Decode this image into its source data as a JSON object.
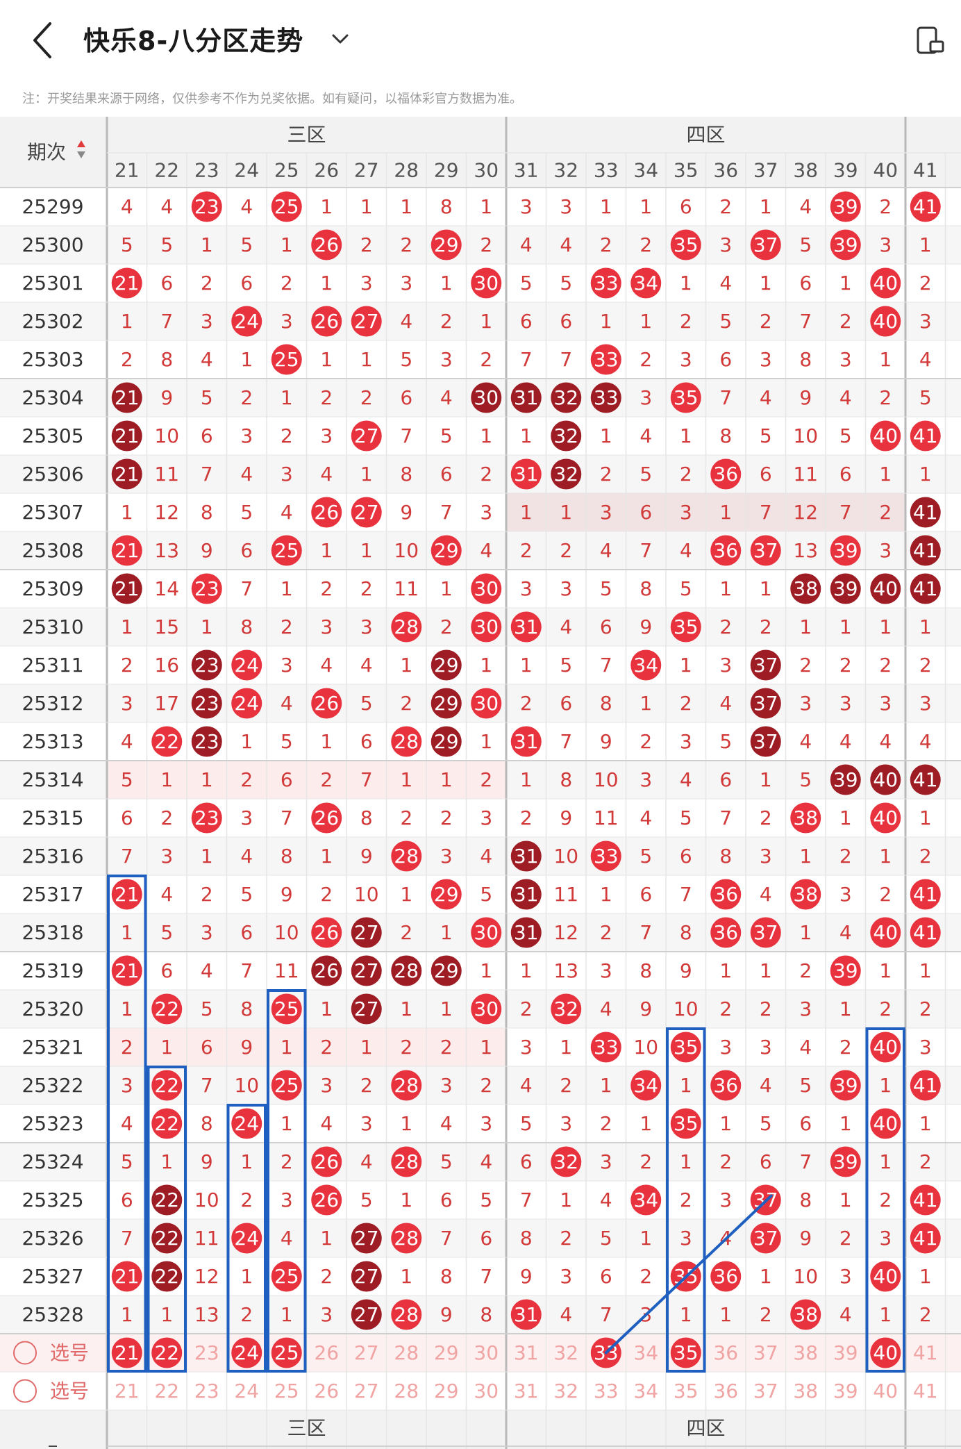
{
  "header": {
    "title": "快乐8-八分区走势",
    "back_icon": "chevron-left-icon",
    "dropdown_icon": "chevron-down-icon",
    "right_icon": "device-settings-icon"
  },
  "note": "注：开奖结果来源于网络，仅供参考不作为兑奖依据。如有疑问，以福体彩官方数据为准。",
  "table": {
    "period_header": "期次",
    "sort_icon": "sort-updown-icon",
    "zones": [
      "三区",
      "四区"
    ],
    "numbers": [
      "21",
      "22",
      "23",
      "24",
      "25",
      "26",
      "27",
      "28",
      "29",
      "30",
      "31",
      "32",
      "33",
      "34",
      "35",
      "36",
      "37",
      "38",
      "39",
      "40",
      "41"
    ],
    "rows": [
      {
        "period": "25299",
        "cells": [
          "4",
          "4",
          "H",
          "4",
          "H",
          "1",
          "1",
          "1",
          "8",
          "1",
          "3",
          "3",
          "1",
          "1",
          "6",
          "2",
          "1",
          "4",
          "H",
          "2",
          "H"
        ]
      },
      {
        "period": "25300",
        "cells": [
          "5",
          "5",
          "1",
          "5",
          "1",
          "H",
          "2",
          "2",
          "H",
          "2",
          "4",
          "4",
          "2",
          "2",
          "H",
          "3",
          "H",
          "5",
          "H",
          "3",
          "1"
        ]
      },
      {
        "period": "25301",
        "cells": [
          "H",
          "6",
          "2",
          "6",
          "2",
          "1",
          "3",
          "3",
          "1",
          "H",
          "5",
          "5",
          "H",
          "H",
          "1",
          "4",
          "1",
          "6",
          "1",
          "H",
          "2"
        ]
      },
      {
        "period": "25302",
        "cells": [
          "1",
          "7",
          "3",
          "H",
          "3",
          "H",
          "H",
          "4",
          "2",
          "1",
          "6",
          "6",
          "1",
          "1",
          "2",
          "5",
          "2",
          "7",
          "2",
          "H",
          "3"
        ]
      },
      {
        "period": "25303",
        "cells": [
          "2",
          "8",
          "4",
          "1",
          "H",
          "1",
          "1",
          "5",
          "3",
          "2",
          "7",
          "7",
          "H",
          "2",
          "3",
          "6",
          "3",
          "8",
          "3",
          "1",
          "4"
        ]
      },
      {
        "period": "25304",
        "cells": [
          "C",
          "9",
          "5",
          "2",
          "1",
          "2",
          "2",
          "6",
          "4",
          "C",
          "C",
          "C",
          "C",
          "3",
          "H",
          "7",
          "4",
          "9",
          "4",
          "2",
          "5"
        ]
      },
      {
        "period": "25305",
        "cells": [
          "C",
          "10",
          "6",
          "3",
          "2",
          "3",
          "H",
          "7",
          "5",
          "1",
          "1",
          "C",
          "1",
          "4",
          "1",
          "8",
          "5",
          "10",
          "5",
          "H",
          "H"
        ]
      },
      {
        "period": "25306",
        "cells": [
          "C",
          "11",
          "7",
          "4",
          "3",
          "4",
          "1",
          "8",
          "6",
          "2",
          "H",
          "C",
          "2",
          "5",
          "2",
          "H",
          "6",
          "11",
          "6",
          "1",
          "1"
        ]
      },
      {
        "period": "25307",
        "cells": [
          "1",
          "12",
          "8",
          "5",
          "4",
          "H",
          "H",
          "9",
          "7",
          "3",
          "1",
          "1",
          "3",
          "6",
          "3",
          "1",
          "7",
          "12",
          "7",
          "2",
          "C"
        ]
      },
      {
        "period": "25308",
        "cells": [
          "H",
          "13",
          "9",
          "6",
          "H",
          "1",
          "1",
          "10",
          "H",
          "4",
          "2",
          "2",
          "4",
          "7",
          "4",
          "H",
          "H",
          "13",
          "H",
          "3",
          "C"
        ]
      },
      {
        "period": "25309",
        "cells": [
          "C",
          "14",
          "H",
          "7",
          "1",
          "2",
          "2",
          "11",
          "1",
          "H",
          "3",
          "3",
          "5",
          "8",
          "5",
          "1",
          "1",
          "C",
          "C",
          "C",
          "C"
        ]
      },
      {
        "period": "25310",
        "cells": [
          "1",
          "15",
          "1",
          "8",
          "2",
          "3",
          "3",
          "H",
          "2",
          "H",
          "H",
          "4",
          "6",
          "9",
          "H",
          "2",
          "2",
          "1",
          "1",
          "1",
          "1"
        ]
      },
      {
        "period": "25311",
        "cells": [
          "2",
          "16",
          "C",
          "H",
          "3",
          "4",
          "4",
          "1",
          "C",
          "1",
          "1",
          "5",
          "7",
          "H",
          "1",
          "3",
          "C",
          "2",
          "2",
          "2",
          "2"
        ]
      },
      {
        "period": "25312",
        "cells": [
          "3",
          "17",
          "C",
          "H",
          "4",
          "H",
          "5",
          "2",
          "C",
          "H",
          "2",
          "6",
          "8",
          "1",
          "2",
          "4",
          "C",
          "3",
          "3",
          "3",
          "3"
        ]
      },
      {
        "period": "25313",
        "cells": [
          "4",
          "H",
          "C",
          "1",
          "5",
          "1",
          "6",
          "H",
          "C",
          "1",
          "H",
          "7",
          "9",
          "2",
          "3",
          "5",
          "C",
          "4",
          "4",
          "4",
          "4"
        ]
      },
      {
        "period": "25314",
        "cells": [
          "5",
          "1",
          "1",
          "2",
          "6",
          "2",
          "7",
          "1",
          "1",
          "2",
          "1",
          "8",
          "10",
          "3",
          "4",
          "6",
          "1",
          "5",
          "C",
          "C",
          "C"
        ]
      },
      {
        "period": "25315",
        "cells": [
          "6",
          "2",
          "H",
          "3",
          "7",
          "H",
          "8",
          "2",
          "2",
          "3",
          "2",
          "9",
          "11",
          "4",
          "5",
          "7",
          "2",
          "H",
          "1",
          "H",
          "1"
        ]
      },
      {
        "period": "25316",
        "cells": [
          "7",
          "3",
          "1",
          "4",
          "8",
          "1",
          "9",
          "H",
          "3",
          "4",
          "C",
          "10",
          "H",
          "5",
          "6",
          "8",
          "3",
          "1",
          "2",
          "1",
          "2"
        ]
      },
      {
        "period": "25317",
        "cells": [
          "H",
          "4",
          "2",
          "5",
          "9",
          "2",
          "10",
          "1",
          "H",
          "5",
          "C",
          "11",
          "1",
          "6",
          "7",
          "H",
          "4",
          "H",
          "3",
          "2",
          "H"
        ]
      },
      {
        "period": "25318",
        "cells": [
          "1",
          "5",
          "3",
          "6",
          "10",
          "H",
          "C",
          "2",
          "1",
          "H",
          "C",
          "12",
          "2",
          "7",
          "8",
          "H",
          "H",
          "1",
          "4",
          "H",
          "H"
        ]
      },
      {
        "period": "25319",
        "cells": [
          "H",
          "6",
          "4",
          "7",
          "11",
          "C",
          "C",
          "C",
          "C",
          "1",
          "1",
          "13",
          "3",
          "8",
          "9",
          "1",
          "1",
          "2",
          "H",
          "1",
          "1"
        ]
      },
      {
        "period": "25320",
        "cells": [
          "1",
          "H",
          "5",
          "8",
          "H",
          "1",
          "C",
          "1",
          "1",
          "H",
          "2",
          "H",
          "4",
          "9",
          "10",
          "2",
          "2",
          "3",
          "1",
          "2",
          "2"
        ]
      },
      {
        "period": "25321",
        "cells": [
          "2",
          "1",
          "6",
          "9",
          "1",
          "2",
          "1",
          "2",
          "2",
          "1",
          "3",
          "1",
          "H",
          "10",
          "H",
          "3",
          "3",
          "4",
          "2",
          "H",
          "3"
        ]
      },
      {
        "period": "25322",
        "cells": [
          "3",
          "H",
          "7",
          "10",
          "H",
          "3",
          "2",
          "H",
          "3",
          "2",
          "4",
          "2",
          "1",
          "H",
          "1",
          "H",
          "4",
          "5",
          "H",
          "1",
          "H"
        ]
      },
      {
        "period": "25323",
        "cells": [
          "4",
          "H",
          "8",
          "H",
          "1",
          "4",
          "3",
          "1",
          "4",
          "3",
          "5",
          "3",
          "2",
          "1",
          "H",
          "1",
          "5",
          "6",
          "1",
          "H",
          "1"
        ]
      },
      {
        "period": "25324",
        "cells": [
          "5",
          "1",
          "9",
          "1",
          "2",
          "H",
          "4",
          "H",
          "5",
          "4",
          "6",
          "H",
          "3",
          "2",
          "1",
          "2",
          "6",
          "7",
          "H",
          "1",
          "2"
        ]
      },
      {
        "period": "25325",
        "cells": [
          "6",
          "C",
          "10",
          "2",
          "3",
          "H",
          "5",
          "1",
          "6",
          "5",
          "7",
          "1",
          "4",
          "H",
          "2",
          "3",
          "H",
          "8",
          "1",
          "2",
          "H"
        ]
      },
      {
        "period": "25326",
        "cells": [
          "7",
          "C",
          "11",
          "H",
          "4",
          "1",
          "C",
          "H",
          "7",
          "6",
          "8",
          "2",
          "5",
          "1",
          "3",
          "4",
          "H",
          "9",
          "2",
          "3",
          "H"
        ]
      },
      {
        "period": "25327",
        "cells": [
          "H",
          "C",
          "12",
          "1",
          "H",
          "2",
          "C",
          "1",
          "8",
          "7",
          "9",
          "3",
          "6",
          "2",
          "H",
          "H",
          "1",
          "10",
          "3",
          "H",
          "1"
        ]
      },
      {
        "period": "25328",
        "cells": [
          "1",
          "1",
          "13",
          "2",
          "1",
          "3",
          "C",
          "H",
          "9",
          "8",
          "H",
          "4",
          "7",
          "3",
          "1",
          "1",
          "2",
          "H",
          "4",
          "1",
          "2"
        ]
      }
    ],
    "select_label": "选号",
    "select_rows": [
      {
        "selected": [
          "21",
          "22",
          "24",
          "25",
          "33",
          "35",
          "40"
        ]
      },
      {
        "selected": []
      }
    ]
  },
  "colors": {
    "miss_text": "#d23a3a",
    "hit": "#e8323e",
    "consecutive_hit": "#9e1c24",
    "grid_line": "#e6e6e6",
    "zone_divider": "#b8b8b8",
    "header_bg": "#f2f2f2",
    "stripe_bg": "#f6f6f6",
    "row_highlight": "#fdecec",
    "select_bg": "#fdf0f0",
    "select_text": "#f0a4a4",
    "annotation": "#1e5fbf"
  }
}
